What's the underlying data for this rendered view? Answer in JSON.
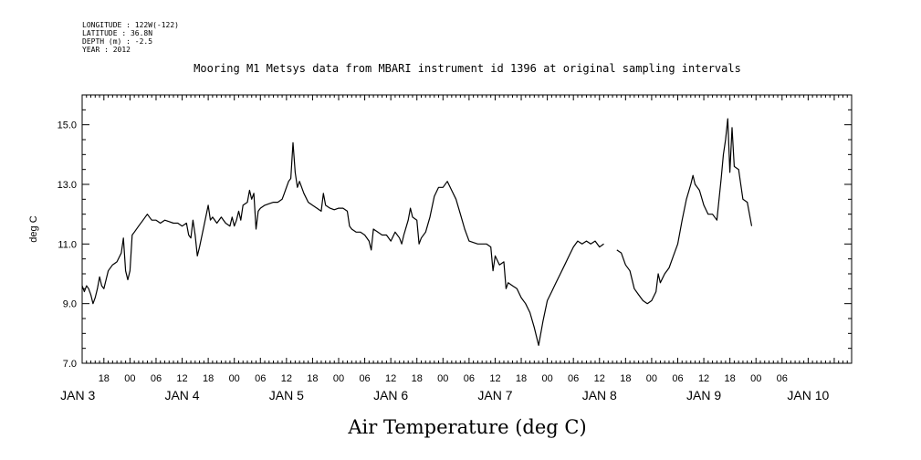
{
  "meta": [
    "LONGITUDE : 122W(-122)",
    "LATITUDE : 36.8N",
    "DEPTH (m) : -2.5",
    "YEAR : 2012"
  ],
  "chart_data": {
    "type": "line",
    "title": "Mooring M1 Metsys data from MBARI instrument id 1396 at original sampling intervals",
    "xlabel": "Air Temperature (deg C)",
    "ylabel": "deg C",
    "ylim": [
      7.0,
      16.0
    ],
    "xlim_hours": [
      -11,
      166
    ],
    "grid": false,
    "y_tick_labels": [
      "7.0",
      "9.0",
      "11.0",
      "13.0",
      "15.0"
    ],
    "x_hour_tick_labels": [
      "18",
      "00",
      "06",
      "12",
      "18",
      "00",
      "06",
      "12",
      "18",
      "00",
      "06",
      "12",
      "18",
      "00",
      "06",
      "12",
      "18",
      "00",
      "06",
      "12",
      "18",
      "00",
      "06",
      "12",
      "18",
      "00",
      "06"
    ],
    "date_labels": [
      "JAN 3",
      "JAN 4",
      "JAN 5",
      "JAN 6",
      "JAN 7",
      "JAN 8",
      "JAN 9",
      "JAN 10"
    ],
    "series": [
      {
        "values": [
          [
            -11,
            9.6
          ],
          [
            -10.5,
            9.4
          ],
          [
            -10,
            9.6
          ],
          [
            -9.5,
            9.5
          ],
          [
            -9,
            9.3
          ],
          [
            -8.5,
            9.0
          ],
          [
            -8,
            9.2
          ],
          [
            -7.5,
            9.5
          ],
          [
            -7,
            9.9
          ],
          [
            -6.5,
            9.6
          ],
          [
            -6,
            9.5
          ],
          [
            -5.5,
            9.8
          ],
          [
            -5,
            10.1
          ],
          [
            -4,
            10.3
          ],
          [
            -3,
            10.4
          ],
          [
            -2,
            10.7
          ],
          [
            -1.5,
            11.2
          ],
          [
            -1,
            10.1
          ],
          [
            -0.5,
            9.8
          ],
          [
            0,
            10.1
          ],
          [
            0.5,
            11.3
          ],
          [
            1,
            11.4
          ],
          [
            2,
            11.6
          ],
          [
            3,
            11.8
          ],
          [
            4,
            12.0
          ],
          [
            5,
            11.8
          ],
          [
            6,
            11.8
          ],
          [
            7,
            11.7
          ],
          [
            8,
            11.8
          ],
          [
            9,
            11.75
          ],
          [
            10,
            11.7
          ],
          [
            11,
            11.7
          ],
          [
            12,
            11.6
          ],
          [
            13,
            11.7
          ],
          [
            13.5,
            11.3
          ],
          [
            14,
            11.2
          ],
          [
            14.5,
            11.8
          ],
          [
            15,
            11.3
          ],
          [
            15.5,
            10.6
          ],
          [
            16,
            10.9
          ],
          [
            17,
            11.6
          ],
          [
            18,
            12.3
          ],
          [
            18.5,
            11.8
          ],
          [
            19,
            11.9
          ],
          [
            20,
            11.7
          ],
          [
            21,
            11.9
          ],
          [
            22,
            11.7
          ],
          [
            23,
            11.6
          ],
          [
            23.5,
            11.9
          ],
          [
            24,
            11.6
          ],
          [
            24.5,
            11.8
          ],
          [
            25,
            12.1
          ],
          [
            25.5,
            11.8
          ],
          [
            26,
            12.3
          ],
          [
            27,
            12.4
          ],
          [
            27.5,
            12.8
          ],
          [
            28,
            12.5
          ],
          [
            28.5,
            12.7
          ],
          [
            29,
            11.5
          ],
          [
            29.5,
            12.1
          ],
          [
            30,
            12.2
          ],
          [
            31,
            12.3
          ],
          [
            32,
            12.35
          ],
          [
            33,
            12.4
          ],
          [
            34,
            12.4
          ],
          [
            35,
            12.5
          ],
          [
            35.5,
            12.7
          ],
          [
            36,
            12.9
          ],
          [
            36.5,
            13.1
          ],
          [
            37,
            13.2
          ],
          [
            37.5,
            14.4
          ],
          [
            38,
            13.4
          ],
          [
            38.5,
            12.9
          ],
          [
            39,
            13.1
          ],
          [
            40,
            12.7
          ],
          [
            41,
            12.4
          ],
          [
            42,
            12.3
          ],
          [
            43,
            12.2
          ],
          [
            44,
            12.1
          ],
          [
            44.5,
            12.7
          ],
          [
            45,
            12.3
          ],
          [
            46,
            12.2
          ],
          [
            47,
            12.15
          ],
          [
            48,
            12.2
          ],
          [
            49,
            12.2
          ],
          [
            50,
            12.1
          ],
          [
            50.5,
            11.6
          ],
          [
            51,
            11.5
          ],
          [
            52,
            11.4
          ],
          [
            53,
            11.4
          ],
          [
            54,
            11.3
          ],
          [
            55,
            11.1
          ],
          [
            55.5,
            10.8
          ],
          [
            56,
            11.5
          ],
          [
            57,
            11.4
          ],
          [
            58,
            11.3
          ],
          [
            59,
            11.3
          ],
          [
            60,
            11.1
          ],
          [
            61,
            11.4
          ],
          [
            62,
            11.2
          ],
          [
            62.5,
            11.0
          ],
          [
            63,
            11.3
          ],
          [
            64,
            11.8
          ],
          [
            64.5,
            12.2
          ],
          [
            65,
            11.9
          ],
          [
            66,
            11.8
          ],
          [
            66.5,
            11.0
          ],
          [
            67,
            11.2
          ],
          [
            68,
            11.4
          ],
          [
            69,
            11.9
          ],
          [
            70,
            12.6
          ],
          [
            71,
            12.9
          ],
          [
            72,
            12.9
          ],
          [
            73,
            13.1
          ],
          [
            74,
            12.8
          ],
          [
            75,
            12.5
          ],
          [
            76,
            12.0
          ],
          [
            77,
            11.5
          ],
          [
            78,
            11.1
          ],
          [
            79,
            11.05
          ],
          [
            80,
            11.0
          ],
          [
            81,
            11.0
          ],
          [
            82,
            11.0
          ],
          [
            83,
            10.9
          ],
          [
            83.5,
            10.1
          ],
          [
            84,
            10.6
          ],
          [
            85,
            10.3
          ],
          [
            86,
            10.4
          ],
          [
            86.5,
            9.5
          ],
          [
            87,
            9.7
          ],
          [
            88,
            9.6
          ],
          [
            89,
            9.5
          ],
          [
            90,
            9.2
          ],
          [
            91,
            9.0
          ],
          [
            92,
            8.7
          ],
          [
            93,
            8.2
          ],
          [
            94,
            7.6
          ],
          [
            95,
            8.4
          ],
          [
            96,
            9.1
          ],
          [
            97,
            9.4
          ],
          [
            98,
            9.7
          ],
          [
            99,
            10.0
          ],
          [
            100,
            10.3
          ],
          [
            101,
            10.6
          ],
          [
            102,
            10.9
          ],
          [
            103,
            11.1
          ],
          [
            104,
            11.0
          ],
          [
            105,
            11.1
          ],
          [
            106,
            11.0
          ],
          [
            107,
            11.1
          ],
          [
            108,
            10.9
          ],
          [
            109,
            11.0
          ]
        ]
      },
      {
        "values": [
          [
            112,
            10.8
          ],
          [
            113,
            10.7
          ],
          [
            114,
            10.3
          ],
          [
            115,
            10.1
          ],
          [
            116,
            9.5
          ],
          [
            117,
            9.3
          ],
          [
            118,
            9.1
          ],
          [
            119,
            9.0
          ],
          [
            120,
            9.1
          ],
          [
            121,
            9.4
          ],
          [
            121.5,
            10.0
          ],
          [
            122,
            9.7
          ],
          [
            123,
            10.0
          ],
          [
            124,
            10.2
          ],
          [
            125,
            10.6
          ],
          [
            126,
            11.0
          ],
          [
            127,
            11.8
          ],
          [
            128,
            12.5
          ],
          [
            129,
            13.0
          ],
          [
            129.5,
            13.3
          ],
          [
            130,
            13.0
          ],
          [
            131,
            12.8
          ],
          [
            132,
            12.3
          ],
          [
            133,
            12.0
          ],
          [
            134,
            12.0
          ],
          [
            135,
            11.8
          ],
          [
            136,
            13.2
          ],
          [
            136.5,
            14.0
          ],
          [
            137,
            14.5
          ],
          [
            137.5,
            15.2
          ],
          [
            138,
            13.4
          ],
          [
            138.5,
            14.9
          ],
          [
            139,
            13.6
          ],
          [
            140,
            13.5
          ],
          [
            141,
            12.5
          ],
          [
            142,
            12.4
          ],
          [
            143,
            11.6
          ]
        ]
      }
    ]
  }
}
